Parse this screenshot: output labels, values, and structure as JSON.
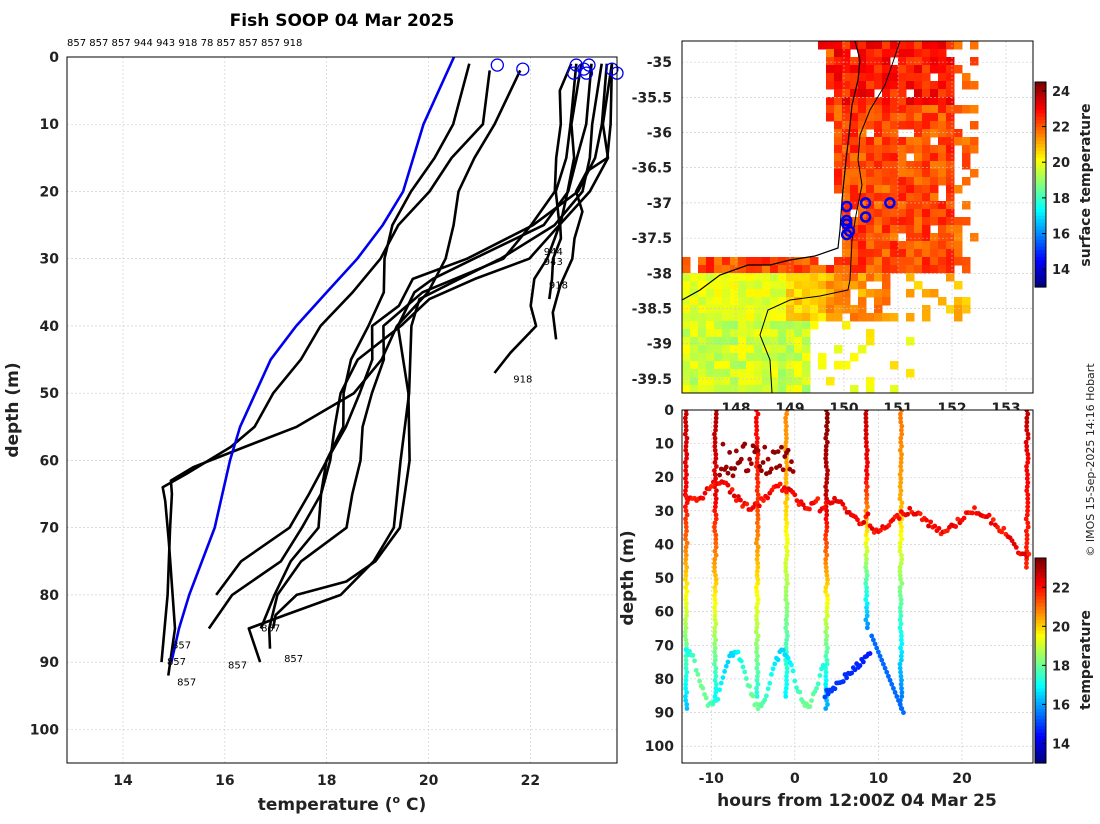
{
  "chart_data": [
    {
      "type": "line",
      "title": "Fish SOOP 04 Mar 2025",
      "subtitle": "857 857 857 944 943 918 78 857 857 857 918",
      "xlabel": "temperature (",
      "xlabel_sup": "o",
      "xlabel_end": " C)",
      "ylabel": "depth (m)",
      "xlim": [
        12.9,
        23.7
      ],
      "ylim": [
        0,
        105
      ],
      "y_reversed": true,
      "xticks": [
        14,
        16,
        18,
        20,
        22
      ],
      "yticks": [
        0,
        10,
        20,
        30,
        40,
        50,
        60,
        70,
        80,
        90,
        100
      ],
      "grid": true,
      "mean_profile": {
        "name": "mean",
        "color": "#0000ee",
        "temperature": [
          20.5,
          19.9,
          19.5,
          19.1,
          18.6,
          18.0,
          17.4,
          16.9,
          16.6,
          16.3,
          16.1,
          15.8,
          15.3,
          15.1,
          14.95
        ],
        "depth": [
          0,
          10,
          20,
          25,
          30,
          35,
          40,
          45,
          50,
          55,
          60,
          70,
          80,
          85,
          90
        ]
      },
      "profiles": [
        {
          "id": "857",
          "temperature": [
            22.8,
            22.6,
            22.5,
            22.5,
            22.4,
            22.0,
            21.5,
            20.0,
            19.2,
            19.0,
            18.9,
            18.8,
            18.6,
            18.5,
            18.3,
            17.6,
            17.0,
            16.8,
            16.9
          ],
          "depth": [
            1,
            5,
            10,
            15,
            20,
            25,
            30,
            35,
            40,
            45,
            50,
            55,
            60,
            65,
            70,
            75,
            80,
            85,
            88
          ]
        },
        {
          "id": "857",
          "temperature": [
            21.8,
            21.4,
            21.0,
            20.7,
            20.5,
            20.3,
            20.0,
            19.5,
            19.0,
            18.5,
            17.5,
            16.5,
            15.5,
            15.0,
            14.9,
            14.8,
            14.8,
            14.8
          ],
          "depth": [
            2,
            10,
            15,
            20,
            25,
            30,
            35,
            40,
            45,
            50,
            55,
            58,
            61,
            63,
            65,
            70,
            80,
            90
          ]
        },
        {
          "id": "857",
          "temperature": [
            21.2,
            21.0,
            20.5,
            20.0,
            19.5,
            19.0,
            18.5,
            18.0,
            17.5,
            17.0,
            16.5,
            16.0,
            15.3,
            14.9,
            14.8,
            14.8,
            14.9,
            14.8
          ],
          "depth": [
            2,
            10,
            15,
            20,
            25,
            30,
            35,
            40,
            45,
            50,
            55,
            58,
            62,
            64,
            66,
            72,
            85,
            92
          ]
        },
        {
          "id": "944",
          "temperature": [
            22.9,
            22.8,
            22.7,
            22.6,
            22.5,
            22.4,
            22.3,
            22.2,
            22.1,
            22.0,
            21.6,
            21.2
          ],
          "depth": [
            1,
            10,
            15,
            20,
            25,
            27,
            30,
            33,
            37,
            40,
            44,
            47
          ]
        },
        {
          "id": "943",
          "temperature": [
            23.0,
            22.9,
            22.8,
            22.7,
            22.6,
            22.5,
            22.4,
            22.3,
            22.3
          ],
          "depth": [
            1,
            10,
            15,
            20,
            25,
            27,
            30,
            33,
            36
          ]
        },
        {
          "id": "918",
          "temperature": [
            23.6,
            23.5,
            23.4,
            23.2,
            23.0,
            22.9,
            22.8,
            22.7,
            22.6,
            22.5,
            22.4
          ],
          "depth": [
            1,
            10,
            15,
            17,
            20,
            23,
            27,
            30,
            34,
            38,
            42
          ]
        },
        {
          "id": "78",
          "temperature": [
            23.2,
            23.1,
            23.0,
            22.7,
            22.2,
            21.0,
            20.0,
            19.6,
            19.5,
            19.5,
            19.6,
            19.4,
            19.0,
            18.5,
            17.5,
            17.0,
            16.9
          ],
          "depth": [
            1,
            10,
            15,
            20,
            25,
            30,
            33,
            35,
            40,
            50,
            60,
            70,
            75,
            78,
            80,
            83,
            85
          ]
        },
        {
          "id": "857",
          "temperature": [
            23.4,
            23.3,
            23.2,
            23.1,
            22.5,
            21.5,
            20.5,
            19.7,
            19.6,
            19.6,
            19.5,
            19.3,
            18.9,
            18.2,
            17.3,
            16.5,
            16.6
          ],
          "depth": [
            1,
            10,
            15,
            20,
            25,
            30,
            33,
            36,
            40,
            50,
            60,
            70,
            75,
            80,
            83,
            85,
            90
          ]
        },
        {
          "id": "857",
          "temperature": [
            20.8,
            20.4,
            20.1,
            19.6,
            19.4,
            19.2,
            19.0,
            18.7,
            18.5,
            18.4,
            18.2,
            18.0,
            17.8,
            17.5,
            17.0,
            16.2,
            15.8
          ],
          "depth": [
            1,
            10,
            15,
            20,
            25,
            30,
            35,
            40,
            45,
            50,
            55,
            60,
            65,
            70,
            75,
            80,
            85
          ]
        },
        {
          "id": "857",
          "temperature": [
            23.5,
            23.4,
            23.2,
            23.0,
            22.0,
            20.8,
            19.8,
            19.3,
            19.0,
            18.8,
            18.6,
            18.4,
            18.1,
            17.7,
            17.2,
            16.4,
            15.9
          ],
          "depth": [
            1,
            10,
            15,
            20,
            25,
            30,
            33,
            37,
            40,
            45,
            50,
            55,
            60,
            65,
            70,
            75,
            80
          ]
        },
        {
          "id": "918",
          "temperature": [
            23.6,
            23.5,
            23.4,
            23.1,
            22.6,
            22.0,
            21.0,
            19.9,
            19.4,
            18.6,
            18.3,
            18.2,
            18.1,
            18.0,
            17.8,
            17.4,
            17.0,
            16.8
          ],
          "depth": [
            1,
            10,
            15,
            20,
            25,
            30,
            33,
            36,
            40,
            45,
            50,
            55,
            60,
            65,
            70,
            75,
            80,
            85
          ]
        }
      ],
      "profile_labels": [
        "857",
        "857",
        "857",
        "857",
        "857",
        "857",
        "944",
        "943",
        "918",
        "918"
      ],
      "labels": [
        "857",
        "857",
        "857",
        "857",
        "857",
        "857",
        "944",
        "943",
        "918",
        "918"
      ],
      "marker_color": "#0000ee",
      "surface_markers_temperature": [
        21.35,
        21.85,
        22.85,
        22.9,
        23.05,
        23.1,
        23.15,
        23.6,
        23.7
      ]
    },
    {
      "type": "heatmap",
      "title": "",
      "xlabel": "",
      "ylabel": "",
      "xlim": [
        147.0,
        153.5
      ],
      "ylim": [
        -39.7,
        -34.7
      ],
      "xticks": [
        148,
        149,
        150,
        151,
        152,
        153
      ],
      "yticks": [
        -35,
        -35.5,
        -36,
        -36.5,
        -37,
        -37.5,
        -38,
        -38.5,
        -39,
        -39.5
      ],
      "xtick_labels": [
        "148",
        "149",
        "150",
        "151",
        "152",
        "153"
      ],
      "ytick_labels": [
        "-35",
        "-35.5",
        "-36",
        "-36.5",
        "-37",
        "-37.5",
        "-38",
        "-38.5",
        "-39",
        "-39.5"
      ],
      "grid": true,
      "colorbar_label": "surface temperature",
      "colorbar_range": [
        13,
        24.5
      ],
      "colorbar_ticks": [
        14,
        16,
        18,
        20,
        22,
        24
      ],
      "station_markers": [
        {
          "lon": 150.05,
          "lat": -37.05
        },
        {
          "lon": 150.05,
          "lat": -37.25
        },
        {
          "lon": 150.05,
          "lat": -37.3
        },
        {
          "lon": 150.05,
          "lat": -37.45
        },
        {
          "lon": 150.1,
          "lat": -37.4
        },
        {
          "lon": 150.4,
          "lat": -37.0
        },
        {
          "lon": 150.4,
          "lat": -37.2
        },
        {
          "lon": 150.85,
          "lat": -37.0
        }
      ]
    },
    {
      "type": "scatter",
      "title": "",
      "xlabel": "hours from 12:00Z 04 Mar 25",
      "ylabel": "depth (m)",
      "xlim": [
        -13.5,
        28.5
      ],
      "ylim": [
        0,
        105
      ],
      "y_reversed": true,
      "xticks": [
        -10,
        0,
        10,
        20
      ],
      "yticks": [
        0,
        10,
        20,
        30,
        40,
        50,
        60,
        70,
        80,
        90,
        100
      ],
      "grid": true,
      "colorbar_label": "temperature",
      "colorbar_range": [
        13,
        23.5
      ],
      "colorbar_ticks": [
        14,
        16,
        18,
        20,
        22
      ],
      "casts": [
        {
          "hour": -13.0,
          "max_depth": 90,
          "surface_temp": 22.8,
          "bottom_temp": 16.2
        },
        {
          "hour": -9.5,
          "max_depth": 87,
          "surface_temp": 23.0,
          "bottom_temp": 16.8
        },
        {
          "hour": -4.5,
          "max_depth": 86,
          "surface_temp": 22.3,
          "bottom_temp": 17.2
        },
        {
          "hour": -1.0,
          "max_depth": 86,
          "surface_temp": 20.8,
          "bottom_temp": 16.8
        },
        {
          "hour": 3.8,
          "max_depth": 90,
          "surface_temp": 23.4,
          "bottom_temp": 15.9
        },
        {
          "hour": 8.6,
          "max_depth": 66,
          "surface_temp": 22.8,
          "bottom_temp": 15.6
        },
        {
          "hour": 12.7,
          "max_depth": 90,
          "surface_temp": 21.0,
          "bottom_temp": 15.2
        },
        {
          "hour": 27.8,
          "max_depth": 48,
          "surface_temp": 22.9,
          "bottom_temp": 21.8
        }
      ]
    }
  ],
  "credit": "© IMOS 15-Sep-2025 14:16 Hobart"
}
